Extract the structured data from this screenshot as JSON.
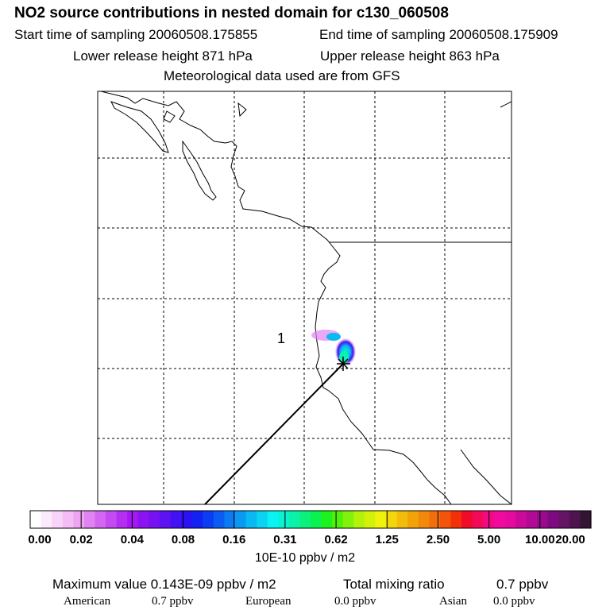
{
  "header": {
    "title": "NO2 source contributions in nested domain for c130_060508",
    "start_label": "Start time of sampling 20060508.175855",
    "end_label": "End time of sampling 20060508.175909",
    "lower_label": "Lower release height  871 hPa",
    "upper_label": "Upper release height  863 hPa",
    "met_label": "Meteorological data used are from GFS"
  },
  "map": {
    "station_label": "1",
    "colors": {
      "coast": "#000000",
      "grid": "#000000",
      "track": "#000000"
    }
  },
  "colorbar": {
    "tick_labels": [
      "0.00",
      "0.02",
      "0.04",
      "0.08",
      "0.16",
      "0.31",
      "0.62",
      "1.25",
      "2.50",
      "5.00",
      "10.00",
      "20.00"
    ],
    "units": "10E-10 ppbv / m2",
    "colors": [
      "#ffffff",
      "#fce9fc",
      "#f9d3f9",
      "#f5bdf5",
      "#efa3f3",
      "#e084f3",
      "#d366f3",
      "#c44af2",
      "#b52ff2",
      "#a418f2",
      "#8d12f2",
      "#7612f2",
      "#5d12f2",
      "#4412f2",
      "#2b12f2",
      "#1520f2",
      "#0d3df2",
      "#0a5cf2",
      "#0a7bf2",
      "#0a99f2",
      "#0ab8f2",
      "#0ad4f2",
      "#0af2f2",
      "#0af2d4",
      "#0af2a8",
      "#0af27c",
      "#0af250",
      "#1ef21e",
      "#50f20a",
      "#82f20a",
      "#b4f20a",
      "#d2f20a",
      "#f0f20a",
      "#f2d70a",
      "#f2bd0a",
      "#f2a30a",
      "#f2890a",
      "#f26e0a",
      "#f2540a",
      "#f2300a",
      "#f20a2a",
      "#f20a57",
      "#f20a84",
      "#f20a9e",
      "#e60a9e",
      "#cc0a99",
      "#b30a93",
      "#990a8c",
      "#7f0a7f",
      "#661466",
      "#4d144d",
      "#331433"
    ]
  },
  "footer": {
    "max_label": "Maximum value  0.143E-09 ppbv / m2",
    "total_label": "Total mixing ratio",
    "total_value": "0.7 ppbv",
    "american_label": "American",
    "american_value": "0.7 ppbv",
    "european_label": "European",
    "european_value": "0.0 ppbv",
    "asian_label": "Asian",
    "asian_value": "0.0 ppbv"
  }
}
